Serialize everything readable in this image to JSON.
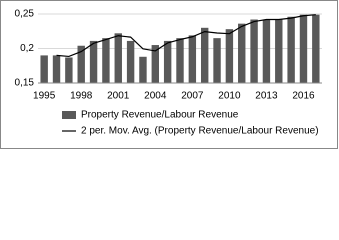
{
  "chart_data": {
    "type": "bar",
    "categories": [
      "1995",
      null,
      null,
      "1998",
      null,
      null,
      "2001",
      null,
      null,
      "2004",
      null,
      null,
      "2007",
      null,
      null,
      "2010",
      null,
      null,
      "2013",
      null,
      null,
      "2016",
      null
    ],
    "series": [
      {
        "name": "Property Revenue/Labour Revenue",
        "type": "bar",
        "color": "#595959",
        "values": [
          0.19,
          0.19,
          0.187,
          0.204,
          0.211,
          0.215,
          0.222,
          0.211,
          0.188,
          0.205,
          0.211,
          0.215,
          0.219,
          0.23,
          0.215,
          0.228,
          0.236,
          0.242,
          0.242,
          0.242,
          0.246,
          0.249,
          0.249
        ]
      },
      {
        "name": "2 per. Mov. Avg. (Property Revenue/Labour Revenue)",
        "type": "line",
        "color": "#000000",
        "values": [
          null,
          0.19,
          0.1885,
          0.1955,
          0.2075,
          0.213,
          0.2185,
          0.2165,
          0.1995,
          0.1965,
          0.208,
          0.213,
          0.217,
          0.2245,
          0.2225,
          0.2215,
          0.232,
          0.239,
          0.242,
          0.242,
          0.244,
          0.2475,
          0.249
        ]
      }
    ],
    "ylim": [
      0.15,
      0.25
    ],
    "yticks": [
      {
        "value": 0.15,
        "label": "0,15"
      },
      {
        "value": 0.2,
        "label": "0,2"
      },
      {
        "value": 0.25,
        "label": "0,25"
      }
    ],
    "grid": true,
    "legend": "bottom"
  }
}
